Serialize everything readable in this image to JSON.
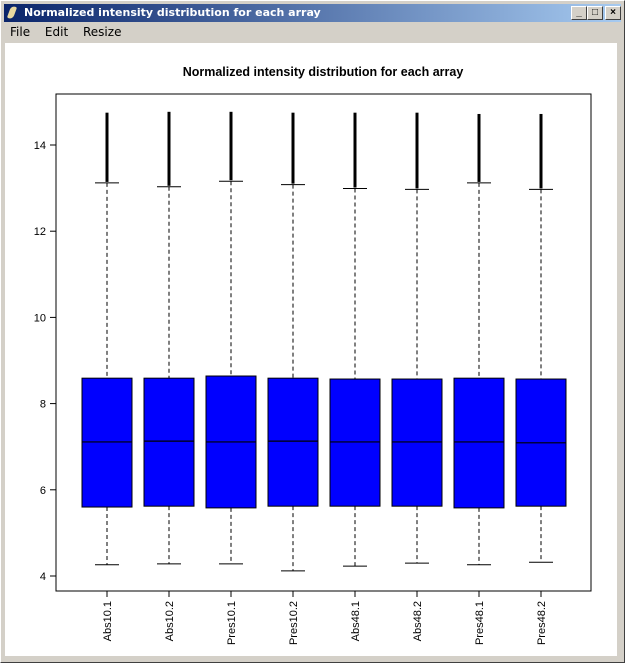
{
  "window": {
    "title": "Normalized intensity distribution for each array",
    "minimize": "_",
    "maximize": "□",
    "close": "×"
  },
  "menu": [
    "File",
    "Edit",
    "Resize"
  ],
  "chart_data": {
    "type": "box",
    "title": "Normalized intensity distribution for each array",
    "xlabel": "",
    "ylabel": "",
    "ylim": [
      3.8,
      15.1
    ],
    "yticks": [
      4,
      6,
      8,
      10,
      12,
      14
    ],
    "fill_color": "#0000ff",
    "categories": [
      "Abs10.1",
      "Abs10.2",
      "Pres10.1",
      "Pres10.2",
      "Abs48.1",
      "Abs48.2",
      "Pres48.1",
      "Pres48.2"
    ],
    "boxes": [
      {
        "lower_whisker": 4.26,
        "q1": 5.6,
        "median": 7.11,
        "q3": 8.59,
        "upper_whisker": 13.12,
        "outlier_max": 14.75
      },
      {
        "lower_whisker": 4.28,
        "q1": 5.62,
        "median": 7.13,
        "q3": 8.59,
        "upper_whisker": 13.03,
        "outlier_max": 14.77
      },
      {
        "lower_whisker": 4.28,
        "q1": 5.58,
        "median": 7.11,
        "q3": 8.64,
        "upper_whisker": 13.16,
        "outlier_max": 14.77
      },
      {
        "lower_whisker": 4.12,
        "q1": 5.62,
        "median": 7.13,
        "q3": 8.59,
        "upper_whisker": 13.08,
        "outlier_max": 14.75
      },
      {
        "lower_whisker": 4.23,
        "q1": 5.62,
        "median": 7.11,
        "q3": 8.57,
        "upper_whisker": 12.99,
        "outlier_max": 14.75
      },
      {
        "lower_whisker": 4.3,
        "q1": 5.62,
        "median": 7.11,
        "q3": 8.57,
        "upper_whisker": 12.97,
        "outlier_max": 14.75
      },
      {
        "lower_whisker": 4.26,
        "q1": 5.58,
        "median": 7.11,
        "q3": 8.59,
        "upper_whisker": 13.12,
        "outlier_max": 14.72
      },
      {
        "lower_whisker": 4.32,
        "q1": 5.62,
        "median": 7.09,
        "q3": 8.57,
        "upper_whisker": 12.97,
        "outlier_max": 14.72
      }
    ]
  }
}
